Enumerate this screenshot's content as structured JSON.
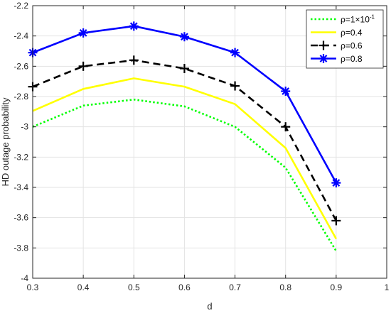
{
  "chart_data": {
    "type": "line",
    "title": "",
    "xlabel": "d",
    "ylabel": "HD outage probability",
    "xlim": [
      0.3,
      1
    ],
    "ylim": [
      -4,
      -2.2
    ],
    "xticks": [
      0.3,
      0.4,
      0.5,
      0.6,
      0.7,
      0.8,
      0.9,
      1
    ],
    "xtick_labels": [
      "0.3",
      "0.4",
      "0.5",
      "0.6",
      "0.7",
      "0.8",
      "0.9",
      "1"
    ],
    "yticks": [
      -4,
      -3.8,
      -3.6,
      -3.4,
      -3.2,
      -3,
      -2.8,
      -2.6,
      -2.4,
      -2.2
    ],
    "ytick_labels": [
      "-4",
      "-3.8",
      "-3.6",
      "-3.4",
      "-3.2",
      "-3",
      "-2.8",
      "-2.6",
      "-2.4",
      "-2.2"
    ],
    "grid": true,
    "legend_position": "top-right",
    "x": [
      0.3,
      0.4,
      0.5,
      0.6,
      0.7,
      0.8,
      0.9
    ],
    "series": [
      {
        "name": "ρ=1×10⁻¹",
        "name_base": "ρ=1×10",
        "name_sup": "-1",
        "values": [
          -3.0,
          -2.86,
          -2.82,
          -2.865,
          -3.0,
          -3.27,
          -3.82
        ],
        "color": "#00ff00",
        "line_style": "dotted",
        "marker": "none"
      },
      {
        "name": "ρ=0.4",
        "values": [
          -2.895,
          -2.75,
          -2.68,
          -2.735,
          -2.85,
          -3.14,
          -3.74
        ],
        "color": "#ffff00",
        "line_style": "solid",
        "marker": "none"
      },
      {
        "name": "ρ=0.6",
        "values": [
          -2.735,
          -2.6,
          -2.56,
          -2.615,
          -2.73,
          -3.0,
          -3.62
        ],
        "color": "#000000",
        "line_style": "dashed",
        "marker": "plus"
      },
      {
        "name": "ρ=0.8",
        "values": [
          -2.51,
          -2.38,
          -2.335,
          -2.405,
          -2.51,
          -2.765,
          -3.37
        ],
        "color": "#0000ff",
        "line_style": "solid",
        "marker": "asterisk"
      }
    ]
  }
}
